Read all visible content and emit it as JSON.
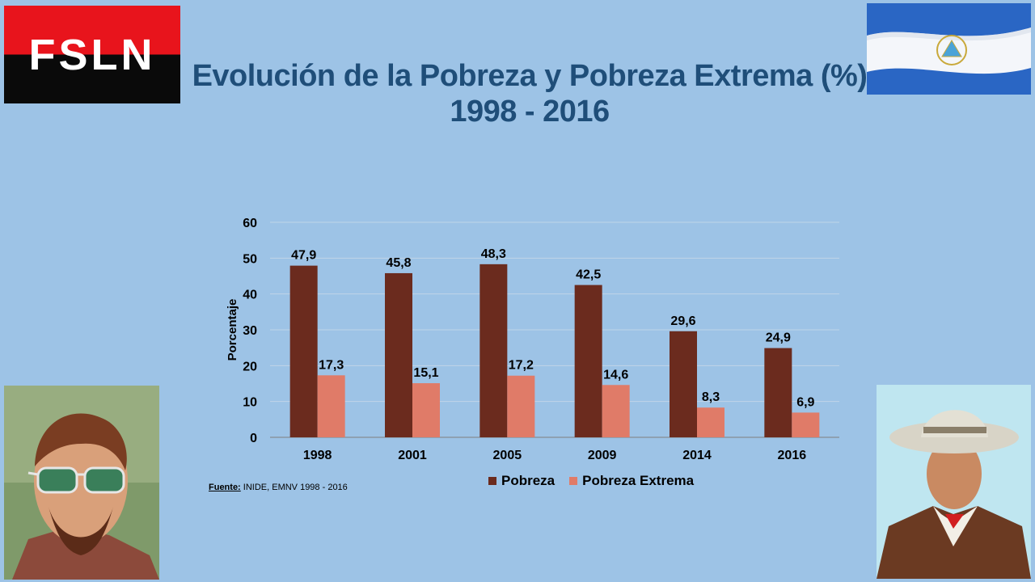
{
  "logo": {
    "text": "FSLN",
    "colors": [
      "#e8141c",
      "#0a0a0a"
    ]
  },
  "flag": {
    "name": "nicaragua-flag",
    "colors": [
      "#1f5fbf",
      "#ffffff"
    ]
  },
  "title": {
    "line1": "Evolución de la Pobreza y Pobreza Extrema (%)",
    "line2": "1998 - 2016"
  },
  "portraits": {
    "left": "man-with-green-sunglasses",
    "right": "man-with-hat"
  },
  "source": {
    "label": "Fuente:",
    "text": " INIDE, EMNV 1998 - 2016"
  },
  "chart_data": {
    "type": "bar",
    "categories": [
      "1998",
      "2001",
      "2005",
      "2009",
      "2014",
      "2016"
    ],
    "series": [
      {
        "name": "Pobreza",
        "values": [
          47.9,
          45.8,
          48.3,
          42.5,
          29.6,
          24.9
        ],
        "labels": [
          "47,9",
          "45,8",
          "48,3",
          "42,5",
          "29,6",
          "24,9"
        ],
        "color": "#6b2b1e"
      },
      {
        "name": "Pobreza Extrema",
        "values": [
          17.3,
          15.1,
          17.2,
          14.6,
          8.3,
          6.9
        ],
        "labels": [
          "17,3",
          "15,1",
          "17,2",
          "14,6",
          "8,3",
          "6,9"
        ],
        "color": "#e07b68"
      }
    ],
    "ylabel": "Porcentaje",
    "ylim": [
      0,
      60
    ],
    "yticks": [
      0,
      10,
      20,
      30,
      40,
      50,
      60
    ],
    "grid": true,
    "legend": "bottom"
  }
}
